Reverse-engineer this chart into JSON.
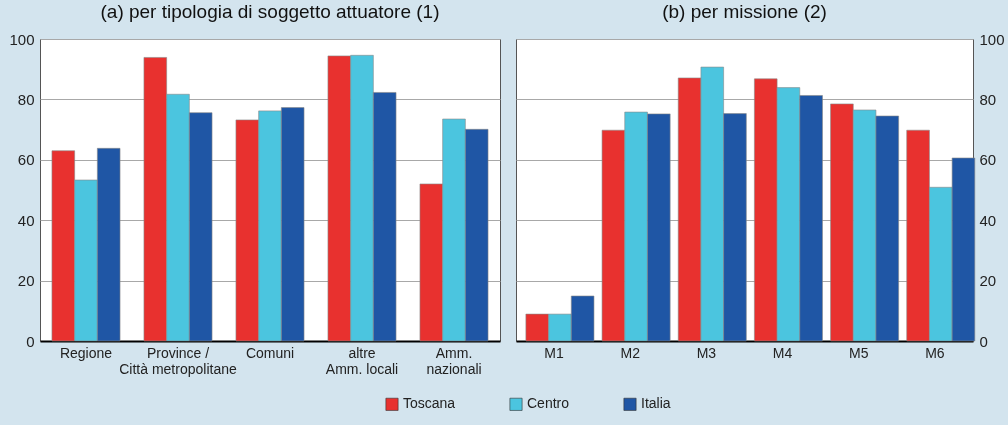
{
  "chart_data": [
    {
      "type": "bar",
      "title": "(a) per tipologia di soggetto attuatore (1)",
      "categories": [
        "Regione",
        "Province /\nCittà metropolitane",
        "Comuni",
        "altre\nAmm. locali",
        "Amm.\nnazionali"
      ],
      "series": [
        {
          "name": "Toscana",
          "color": "#e8312f",
          "values": [
            63.0,
            93.9,
            73.2,
            94.4,
            52.0
          ]
        },
        {
          "name": "Centro",
          "color": "#4bc5df",
          "values": [
            53.3,
            81.7,
            76.2,
            94.6,
            73.5
          ]
        },
        {
          "name": "Italia",
          "color": "#1f56a5",
          "values": [
            63.8,
            75.6,
            77.3,
            82.3,
            70.1
          ]
        }
      ],
      "ylim": [
        0,
        100
      ],
      "yticks": [
        0,
        20,
        40,
        60,
        80,
        100
      ],
      "grid": "y",
      "legend": "bottom"
    },
    {
      "type": "bar",
      "title": "(b) per missione (2)",
      "categories": [
        "M1",
        "M2",
        "M3",
        "M4",
        "M5",
        "M6"
      ],
      "series": [
        {
          "name": "Toscana",
          "color": "#e8312f",
          "values": [
            8.9,
            69.8,
            87.1,
            86.8,
            78.5,
            69.8
          ]
        },
        {
          "name": "Centro",
          "color": "#4bc5df",
          "values": [
            8.9,
            75.8,
            90.7,
            83.9,
            76.5,
            50.9
          ]
        },
        {
          "name": "Italia",
          "color": "#1f56a5",
          "values": [
            14.9,
            75.2,
            75.3,
            81.3,
            74.5,
            60.6
          ]
        }
      ],
      "ylim": [
        0,
        100
      ],
      "yticks": [
        0,
        20,
        40,
        60,
        80,
        100
      ],
      "grid": "y",
      "legend": "bottom"
    }
  ]
}
